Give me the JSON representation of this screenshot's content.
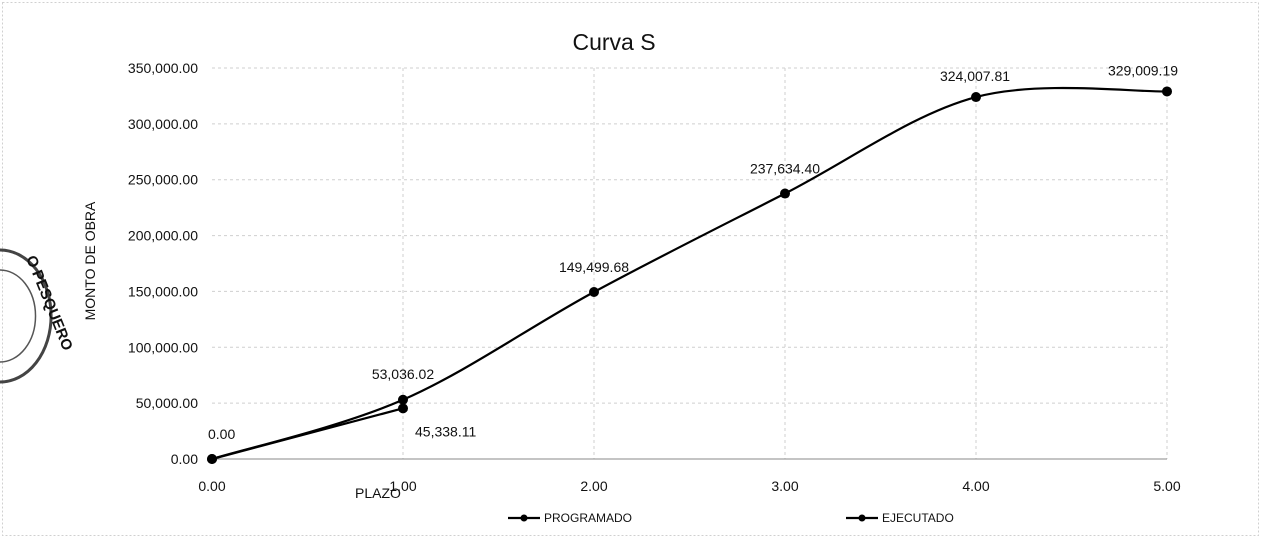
{
  "chart_data": {
    "type": "line",
    "title": "Curva S",
    "xlabel": "PLAZO",
    "ylabel": "MONTO DE OBRA",
    "xlim": [
      0,
      5
    ],
    "ylim": [
      0,
      350000
    ],
    "x_ticks": [
      "0.00",
      "1.00",
      "2.00",
      "3.00",
      "4.00",
      "5.00"
    ],
    "y_ticks": [
      "0.00",
      "50,000.00",
      "100,000.00",
      "150,000.00",
      "200,000.00",
      "250,000.00",
      "300,000.00",
      "350,000.00"
    ],
    "grid": true,
    "legend_position": "bottom",
    "series": [
      {
        "name": "PROGRAMADO",
        "x": [
          0,
          1,
          2,
          3,
          4,
          5
        ],
        "values": [
          0,
          53036.02,
          149499.68,
          237634.4,
          324007.81,
          329009.19
        ],
        "labels": [
          "0.00",
          "53,036.02",
          "149,499.68",
          "237,634.40",
          "324,007.81",
          "329,009.19"
        ],
        "color": "#000000"
      },
      {
        "name": "EJECUTADO",
        "x": [
          0,
          1
        ],
        "values": [
          0,
          45338.11
        ],
        "labels": [
          "",
          "45,338.11"
        ],
        "color": "#000000"
      }
    ]
  },
  "stamp": {
    "text": "O PESQUERO"
  }
}
